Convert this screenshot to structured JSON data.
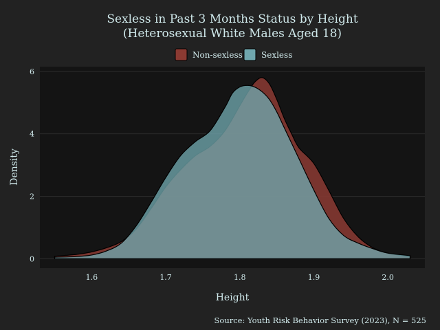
{
  "chart_data": {
    "type": "area",
    "title": "Sexless in Past 3 Months Status by Height",
    "subtitle": "(Heterosexual White Males Aged 18)",
    "xlabel": "Height",
    "ylabel": "Density",
    "caption": "Source: Youth Risk Behavior Survey (2023), N = 525",
    "xlim": [
      1.53,
      2.05
    ],
    "ylim": [
      -0.3,
      6.15
    ],
    "x_ticks": [
      1.6,
      1.7,
      1.8,
      1.9,
      2.0
    ],
    "x_tick_labels": [
      "1.6",
      "1.7",
      "1.8",
      "1.9",
      "2.0"
    ],
    "y_ticks": [
      0,
      2,
      4,
      6
    ],
    "y_tick_labels": [
      "0",
      "2",
      "4",
      "6"
    ],
    "grid": true,
    "legend_position": "top",
    "series": [
      {
        "name": "Non-sexless",
        "color": "#8b3a32",
        "opacity": 0.85,
        "points": [
          [
            1.55,
            0.08
          ],
          [
            1.58,
            0.14
          ],
          [
            1.6,
            0.22
          ],
          [
            1.62,
            0.35
          ],
          [
            1.64,
            0.55
          ],
          [
            1.66,
            0.95
          ],
          [
            1.68,
            1.6
          ],
          [
            1.7,
            2.3
          ],
          [
            1.72,
            2.85
          ],
          [
            1.74,
            3.3
          ],
          [
            1.76,
            3.6
          ],
          [
            1.78,
            4.1
          ],
          [
            1.8,
            4.9
          ],
          [
            1.81,
            5.3
          ],
          [
            1.82,
            5.65
          ],
          [
            1.83,
            5.8
          ],
          [
            1.84,
            5.6
          ],
          [
            1.85,
            5.1
          ],
          [
            1.86,
            4.5
          ],
          [
            1.87,
            4.0
          ],
          [
            1.88,
            3.55
          ],
          [
            1.9,
            3.05
          ],
          [
            1.92,
            2.2
          ],
          [
            1.94,
            1.3
          ],
          [
            1.96,
            0.7
          ],
          [
            1.98,
            0.35
          ],
          [
            2.0,
            0.18
          ],
          [
            2.03,
            0.06
          ]
        ]
      },
      {
        "name": "Sexless",
        "color": "#6fa6ad",
        "opacity": 0.78,
        "points": [
          [
            1.55,
            0.05
          ],
          [
            1.58,
            0.07
          ],
          [
            1.6,
            0.12
          ],
          [
            1.62,
            0.25
          ],
          [
            1.64,
            0.5
          ],
          [
            1.66,
            1.05
          ],
          [
            1.68,
            1.8
          ],
          [
            1.7,
            2.6
          ],
          [
            1.72,
            3.3
          ],
          [
            1.74,
            3.75
          ],
          [
            1.76,
            4.1
          ],
          [
            1.78,
            4.85
          ],
          [
            1.79,
            5.3
          ],
          [
            1.8,
            5.5
          ],
          [
            1.81,
            5.55
          ],
          [
            1.82,
            5.5
          ],
          [
            1.83,
            5.35
          ],
          [
            1.84,
            5.1
          ],
          [
            1.85,
            4.7
          ],
          [
            1.86,
            4.2
          ],
          [
            1.88,
            3.2
          ],
          [
            1.9,
            2.2
          ],
          [
            1.92,
            1.3
          ],
          [
            1.94,
            0.75
          ],
          [
            1.96,
            0.5
          ],
          [
            1.98,
            0.32
          ],
          [
            2.0,
            0.18
          ],
          [
            2.03,
            0.1
          ]
        ]
      }
    ]
  },
  "colors": {
    "background": "#222222",
    "panel": "#141414",
    "grid": "#2c2c2c",
    "text": "#cfe8ea"
  }
}
